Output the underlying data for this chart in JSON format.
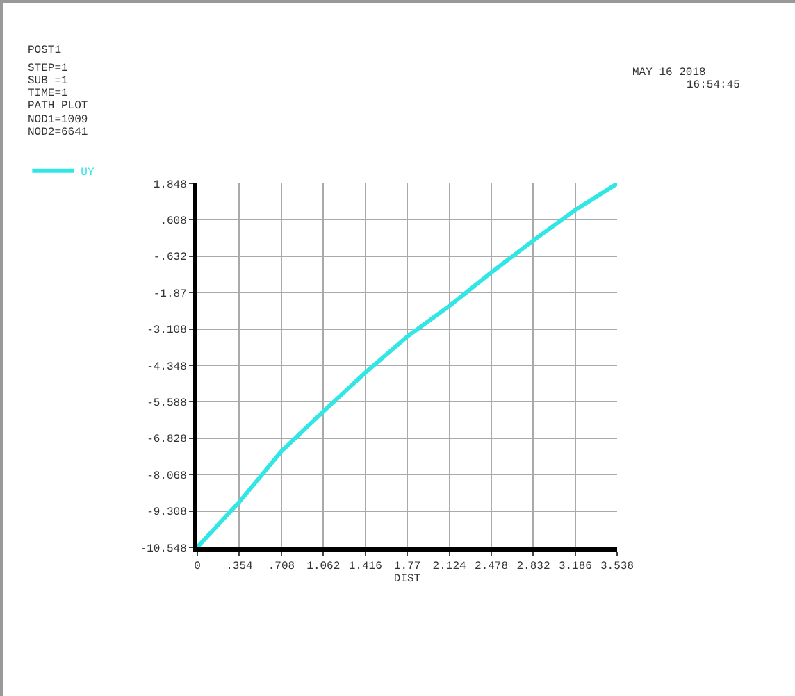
{
  "chart_data": {
    "type": "line",
    "xlabel": "DIST",
    "annotations": [
      "POST1",
      "STEP=1",
      "SUB =1",
      "TIME=1",
      "PATH PLOT",
      "NOD1=1009",
      "NOD2=6641",
      "MAY 16 2018",
      "16:54:45"
    ],
    "series": [
      {
        "name": "UY",
        "color": "#33e6e6",
        "x": [
          0,
          0.3538,
          0.7076,
          1.0614,
          1.4152,
          1.769,
          2.1228,
          2.4766,
          2.8304,
          3.1842,
          3.538
        ],
        "values": [
          -10.54,
          -9.0,
          -7.28,
          -5.92,
          -4.6,
          -3.37,
          -2.33,
          -1.19,
          -0.1,
          0.94,
          1.84
        ]
      }
    ],
    "xlim": [
      0,
      3.538
    ],
    "ylim": [
      -10.548,
      1.848
    ],
    "xticks": [
      0,
      {
        "value": 0.354,
        "label": ".354"
      },
      {
        "value": 0.708,
        "label": ".708"
      },
      1.062,
      1.416,
      1.77,
      2.124,
      2.478,
      2.832,
      3.186,
      3.538
    ],
    "yticks": [
      -10.548,
      -9.308,
      -8.068,
      -6.828,
      -5.588,
      -4.348,
      -3.108,
      -1.87,
      {
        "value": -0.632,
        "label": "-.632"
      },
      {
        "value": 0.608,
        "label": ".608"
      },
      1.848
    ],
    "grid": true,
    "legend": "top left",
    "marker": "none",
    "line_style": "solid"
  }
}
